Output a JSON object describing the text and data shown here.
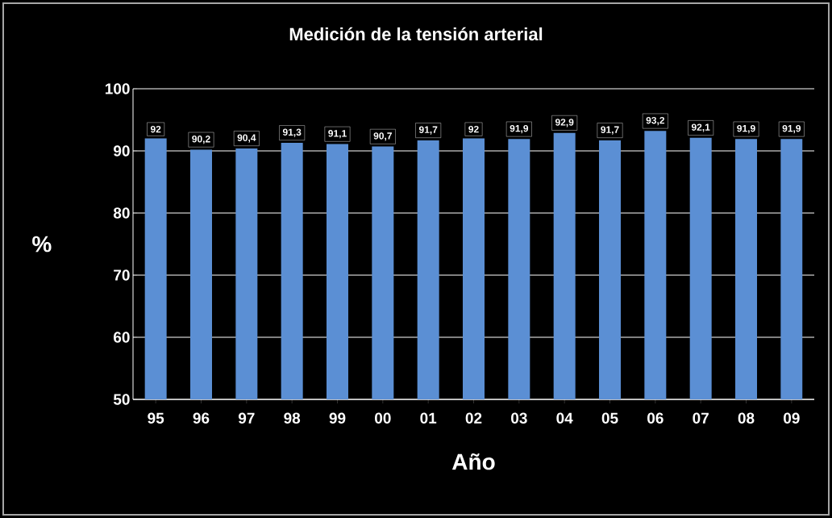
{
  "chart_data": {
    "type": "bar",
    "title": "Medición de la tensión arterial",
    "xlabel": "Año",
    "ylabel": "%",
    "categories": [
      "95",
      "96",
      "97",
      "98",
      "99",
      "00",
      "01",
      "02",
      "03",
      "04",
      "05",
      "06",
      "07",
      "08",
      "09"
    ],
    "values": [
      92,
      90.2,
      90.4,
      91.3,
      91.1,
      90.7,
      91.7,
      92,
      91.9,
      92.9,
      91.7,
      93.2,
      92.1,
      91.9,
      91.9
    ],
    "value_labels": [
      "92",
      "90,2",
      "90,4",
      "91,3",
      "91,1",
      "90,7",
      "91,7",
      "92",
      "91,9",
      "92,9",
      "91,7",
      "93,2",
      "92,1",
      "91,9",
      "91,9"
    ],
    "color": "#5b8fd4",
    "ylim": [
      50,
      100
    ],
    "yticks": [
      50,
      60,
      70,
      80,
      90,
      100
    ],
    "grid": "y"
  }
}
